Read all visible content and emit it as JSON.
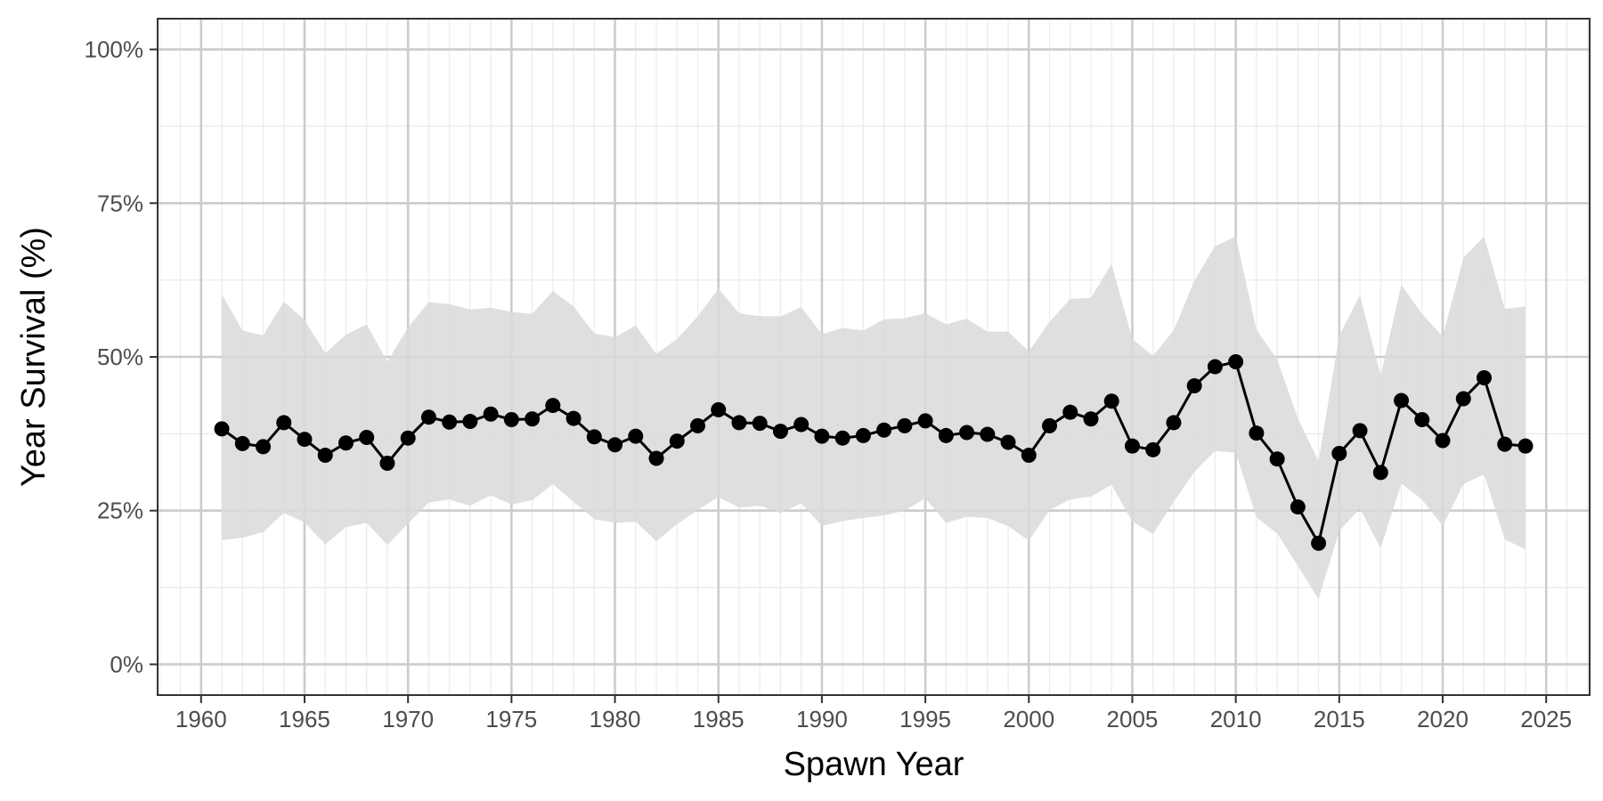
{
  "chart_data": {
    "type": "line",
    "title": "",
    "xlabel": "Spawn Year",
    "ylabel": "Year Survival (%)",
    "xlim": [
      1957.9,
      2027.1
    ],
    "ylim": [
      -5,
      105
    ],
    "x_ticks": [
      1960,
      1965,
      1970,
      1975,
      1980,
      1985,
      1990,
      1995,
      2000,
      2005,
      2010,
      2015,
      2020,
      2025
    ],
    "x_tick_labels": [
      "1960",
      "1965",
      "1970",
      "1975",
      "1980",
      "1985",
      "1990",
      "1995",
      "2000",
      "2005",
      "2010",
      "2015",
      "2020",
      "2025"
    ],
    "y_ticks": [
      0,
      25,
      50,
      75,
      100
    ],
    "y_tick_labels": [
      "0%",
      "25%",
      "50%",
      "75%",
      "100%"
    ],
    "grid": true,
    "legend": "none",
    "colors": {
      "line": "#000000",
      "band": "#d9d9d9",
      "grid_major": "#cccccc",
      "grid_minor": "#ebebeb",
      "frame": "#333333"
    },
    "series": [
      {
        "type": "ribbon",
        "x": [
          1961,
          1962,
          1963,
          1964,
          1965,
          1966,
          1967,
          1968,
          1969,
          1970,
          1971,
          1972,
          1973,
          1974,
          1975,
          1976,
          1977,
          1978,
          1979,
          1980,
          1981,
          1982,
          1983,
          1984,
          1985,
          1986,
          1987,
          1988,
          1989,
          1990,
          1991,
          1992,
          1993,
          1994,
          1995,
          1996,
          1997,
          1998,
          1999,
          2000,
          2001,
          2002,
          2003,
          2004,
          2005,
          2006,
          2007,
          2008,
          2009,
          2010,
          2011,
          2012,
          2013,
          2014,
          2015,
          2016,
          2017,
          2018,
          2019,
          2020,
          2021,
          2022,
          2023,
          2024
        ],
        "lower": [
          20.2,
          20.6,
          21.5,
          24.6,
          23.1,
          19.5,
          22.3,
          23.0,
          19.4,
          22.9,
          26.3,
          26.8,
          25.8,
          27.5,
          26.0,
          26.7,
          29.3,
          26.4,
          23.6,
          23.0,
          23.2,
          20.0,
          22.8,
          25.1,
          27.2,
          25.5,
          25.8,
          24.6,
          26.2,
          22.5,
          23.3,
          23.8,
          24.2,
          25.0,
          27.0,
          23.0,
          24.0,
          23.8,
          22.5,
          20.1,
          25.1,
          26.8,
          27.3,
          29.2,
          23.2,
          21.2,
          26.4,
          31.3,
          34.7,
          34.4,
          23.9,
          21.3,
          16.0,
          10.6,
          21.7,
          25.3,
          18.9,
          29.4,
          26.8,
          22.5,
          29.3,
          30.9,
          20.3,
          18.7
        ],
        "upper": [
          60.2,
          54.3,
          53.5,
          59.0,
          56.0,
          50.6,
          53.6,
          55.3,
          49.2,
          54.8,
          58.9,
          58.6,
          57.7,
          58.0,
          57.3,
          57.0,
          60.7,
          58.2,
          53.8,
          53.2,
          55.1,
          50.5,
          52.9,
          56.6,
          61.1,
          57.1,
          56.6,
          56.6,
          58.1,
          53.7,
          54.7,
          54.3,
          56.1,
          56.3,
          57.1,
          55.3,
          56.2,
          54.1,
          54.1,
          50.9,
          55.7,
          59.4,
          59.6,
          65.1,
          52.9,
          50.2,
          54.3,
          62.4,
          68.0,
          69.6,
          54.4,
          49.6,
          40.0,
          33.0,
          53.5,
          60.0,
          47.0,
          61.7,
          57.0,
          53.3,
          66.1,
          69.6,
          57.8,
          58.2
        ]
      },
      {
        "type": "line+points",
        "x": [
          1961,
          1962,
          1963,
          1964,
          1965,
          1966,
          1967,
          1968,
          1969,
          1970,
          1971,
          1972,
          1973,
          1974,
          1975,
          1976,
          1977,
          1978,
          1979,
          1980,
          1981,
          1982,
          1983,
          1984,
          1985,
          1986,
          1987,
          1988,
          1989,
          1990,
          1991,
          1992,
          1993,
          1994,
          1995,
          1996,
          1997,
          1998,
          1999,
          2000,
          2001,
          2002,
          2003,
          2004,
          2005,
          2006,
          2007,
          2008,
          2009,
          2010,
          2011,
          2012,
          2013,
          2014,
          2015,
          2016,
          2017,
          2018,
          2019,
          2020,
          2021,
          2022,
          2023,
          2024
        ],
        "y": [
          38.3,
          35.9,
          35.4,
          39.3,
          36.6,
          34.0,
          36.0,
          36.9,
          32.7,
          36.8,
          40.2,
          39.4,
          39.5,
          40.7,
          39.8,
          39.9,
          42.1,
          40.0,
          37.0,
          35.7,
          37.1,
          33.5,
          36.3,
          38.8,
          41.4,
          39.3,
          39.2,
          37.9,
          39.0,
          37.1,
          36.8,
          37.2,
          38.1,
          38.8,
          39.6,
          37.2,
          37.7,
          37.4,
          36.1,
          34.0,
          38.8,
          41.0,
          39.9,
          42.8,
          35.5,
          34.9,
          39.3,
          45.3,
          48.4,
          49.2,
          37.6,
          33.4,
          25.6,
          19.7,
          34.3,
          38.0,
          31.2,
          42.9,
          39.8,
          36.4,
          43.2,
          46.6,
          35.8,
          35.5
        ]
      }
    ]
  }
}
